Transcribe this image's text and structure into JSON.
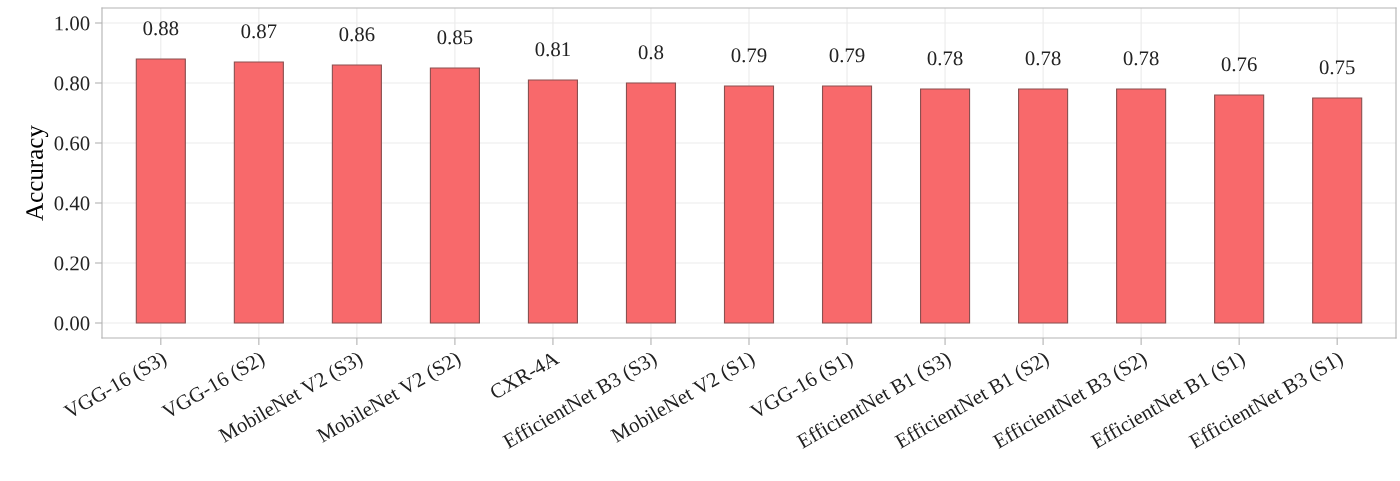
{
  "chart_data": {
    "type": "bar",
    "ylabel": "Accuracy",
    "categories": [
      "VGG-16 (S3)",
      "VGG-16 (S2)",
      "MobileNet V2 (S3)",
      "MobileNet V2 (S2)",
      "CXR-4A",
      "EfficientNet B3 (S3)",
      "MobileNet V2 (S1)",
      "VGG-16 (S1)",
      "EfficientNet B1 (S3)",
      "EfficientNet B1 (S2)",
      "EfficientNet B3 (S2)",
      "EfficientNet B1 (S1)",
      "EfficientNet B3 (S1)"
    ],
    "values": [
      0.88,
      0.87,
      0.86,
      0.85,
      0.81,
      0.8,
      0.79,
      0.79,
      0.78,
      0.78,
      0.78,
      0.76,
      0.75
    ],
    "color": "#f8696b",
    "ylim": [
      -0.05,
      1.05
    ],
    "yticks": [
      {
        "value": 0,
        "label": "0.00"
      },
      {
        "value": 0.2,
        "label": "0.20"
      },
      {
        "value": 0.4,
        "label": "0.40"
      },
      {
        "value": 0.6,
        "label": "0.60"
      },
      {
        "value": 0.8,
        "label": "0.80"
      },
      {
        "value": 1.0,
        "label": "1.00"
      }
    ],
    "grid": true,
    "data_labels": true
  }
}
